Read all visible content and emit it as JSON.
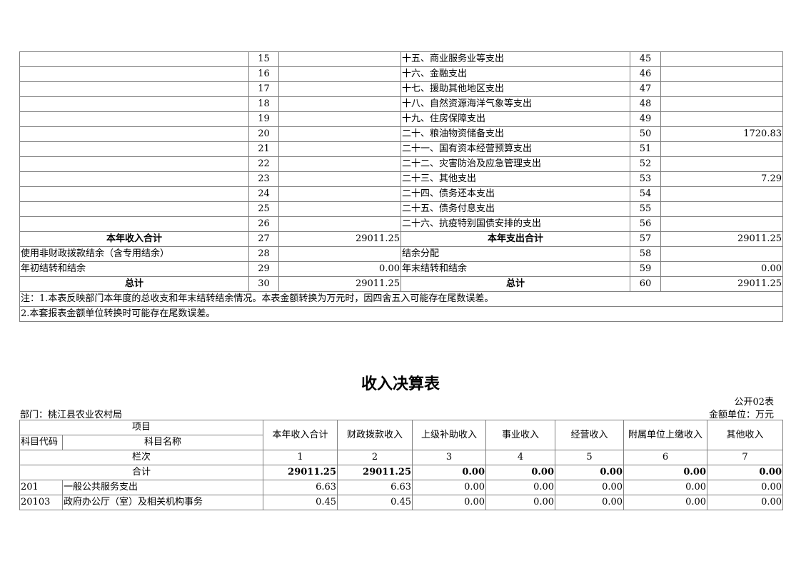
{
  "table1": {
    "rows": [
      [
        "",
        "15",
        "",
        "十五、商业服务业等支出",
        "45",
        ""
      ],
      [
        "",
        "16",
        "",
        "十六、金融支出",
        "46",
        ""
      ],
      [
        "",
        "17",
        "",
        "十七、援助其他地区支出",
        "47",
        ""
      ],
      [
        "",
        "18",
        "",
        "十八、自然资源海洋气象等支出",
        "48",
        ""
      ],
      [
        "",
        "19",
        "",
        "十九、住房保障支出",
        "49",
        ""
      ],
      [
        "",
        "20",
        "",
        "二十、粮油物资储备支出",
        "50",
        "1720.83"
      ],
      [
        "",
        "21",
        "",
        "二十一、国有资本经营预算支出",
        "51",
        ""
      ],
      [
        "",
        "22",
        "",
        "二十二、灾害防治及应急管理支出",
        "52",
        ""
      ],
      [
        "",
        "23",
        "",
        "二十三、其他支出",
        "53",
        "7.29"
      ],
      [
        "",
        "24",
        "",
        "二十四、债务还本支出",
        "54",
        ""
      ],
      [
        "",
        "25",
        "",
        "二十五、债务付息支出",
        "55",
        ""
      ],
      [
        "",
        "26",
        "",
        "二十六、抗疫特别国债安排的支出",
        "56",
        ""
      ],
      [
        "本年收入合计",
        "27",
        "29011.25",
        "本年支出合计",
        "57",
        "29011.25"
      ],
      [
        "使用非财政拨款结余（含专用结余）",
        "28",
        "",
        "结余分配",
        "58",
        ""
      ],
      [
        "年初结转和结余",
        "29",
        "0.00",
        "年末结转和结余",
        "59",
        "0.00"
      ],
      [
        "总计",
        "30",
        "29011.25",
        "总计",
        "60",
        "29011.25"
      ]
    ],
    "bold_rows": [
      12,
      15
    ],
    "notes": [
      "注：1.本表反映部门本年度的总收支和年末结转结余情况。本表金额转换为万元时，因四舍五入可能存在尾数误差。",
      "2.本套报表金额单位转换时可能存在尾数误差。"
    ]
  },
  "table2": {
    "title": "收入决算表",
    "form_no": "公开02表",
    "department": "部门：桃江县农业农村局",
    "unit": "金额单位：万元",
    "header_item": "项目",
    "header_code": "科目代码",
    "header_name": "科目名称",
    "columns": [
      "本年收入合计",
      "财政拨款收入",
      "上级补助收入",
      "事业收入",
      "经营收入",
      "附属单位上缴收入",
      "其他收入"
    ],
    "index_label": "栏次",
    "index": [
      "1",
      "2",
      "3",
      "4",
      "5",
      "6",
      "7"
    ],
    "total_label": "合计",
    "total": [
      "29011.25",
      "29011.25",
      "0.00",
      "0.00",
      "0.00",
      "0.00",
      "0.00"
    ],
    "rows": [
      {
        "code": "201",
        "name": "一般公共服务支出",
        "values": [
          "6.63",
          "6.63",
          "0.00",
          "0.00",
          "0.00",
          "0.00",
          "0.00"
        ]
      },
      {
        "code": "20103",
        "name": "政府办公厅（室）及相关机构事务",
        "values": [
          "0.45",
          "0.45",
          "0.00",
          "0.00",
          "0.00",
          "0.00",
          "0.00"
        ]
      }
    ]
  }
}
